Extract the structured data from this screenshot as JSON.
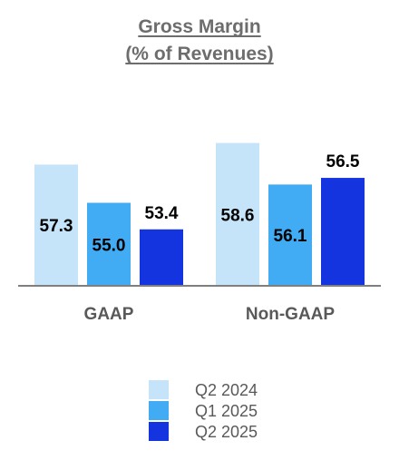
{
  "chart_data": {
    "type": "bar",
    "title": "Gross Margin",
    "subtitle": "(% of Revenues)",
    "categories": [
      "GAAP",
      "Non-GAAP"
    ],
    "series": [
      {
        "name": "Q2 2024",
        "values": [
          57.3,
          58.6
        ],
        "color": "#c5e4f9"
      },
      {
        "name": "Q1 2025",
        "values": [
          55.0,
          56.1
        ],
        "color": "#41acf4"
      },
      {
        "name": "Q2 2025",
        "values": [
          53.4,
          56.5
        ],
        "color": "#1434e0"
      }
    ],
    "xlabel": "",
    "ylabel": "",
    "ylim": [
      50,
      60
    ],
    "grid": false,
    "legend_position": "bottom"
  }
}
